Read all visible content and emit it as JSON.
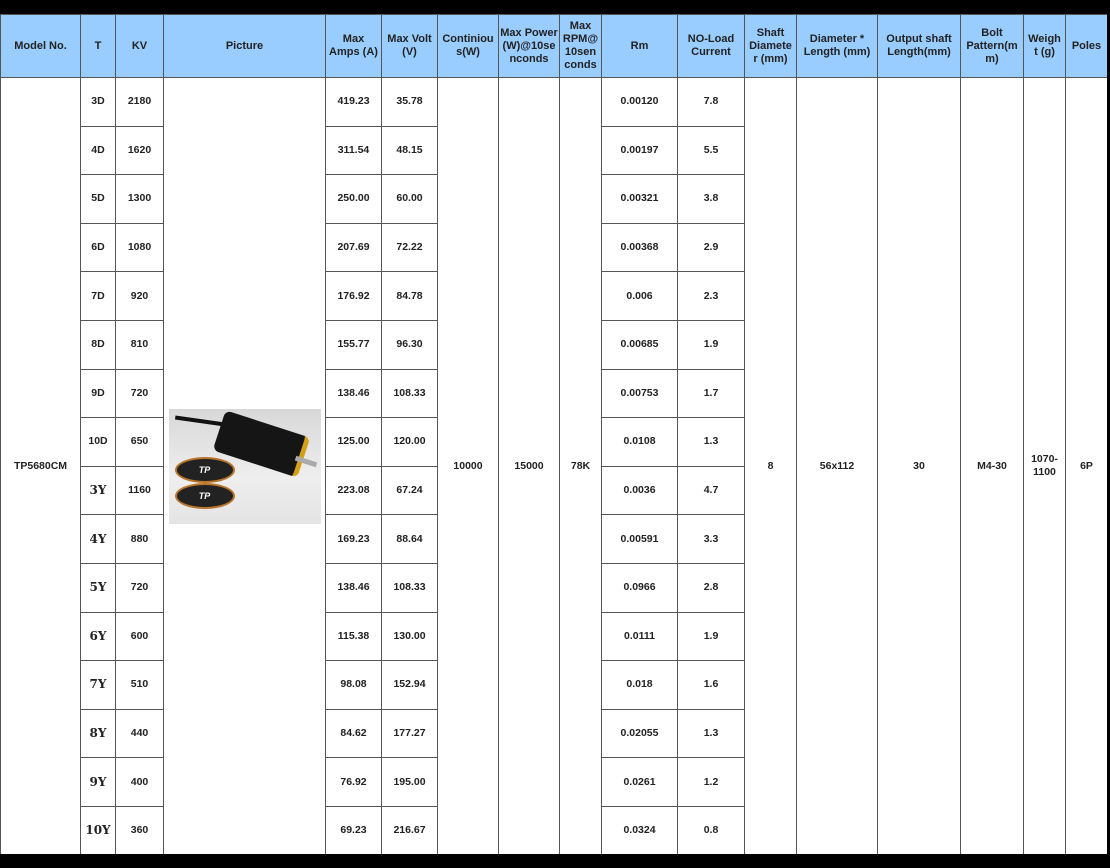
{
  "headers": [
    "Model No.",
    "T",
    "KV",
    "Picture",
    "Max Amps (A)",
    "Max Volt (V)",
    "Continious(W)",
    "Max Power (W)@10seconds",
    "Max RPM@ 10seconds",
    "Rm",
    "NO-Load Current",
    "Shaft Diameter (mm)",
    "Diameter * Length (mm)",
    "Output shaft Length(mm)",
    "Bolt Pattern(mm)",
    "Weight (g)",
    "Poles"
  ],
  "header_display": [
    "Model No.",
    "T",
    "KV",
    "Picture",
    "Max Amps (A)",
    "Max Volt (V)",
    "Continiou s(W)",
    "Max Power (W)@10se nconds",
    "Max RPM@ 10sen conds",
    "Rm",
    "NO-Load Current",
    "Shaft Diamete r (mm)",
    "Diameter * Length (mm)",
    "Output shaft Length(mm)",
    "Bolt Pattern(m m)",
    "Weigh t (g)",
    "Poles"
  ],
  "shared": {
    "model": "TP5680CM",
    "continuous": "10000",
    "max_power": "15000",
    "max_rpm": "78K",
    "shaft_diameter": "8",
    "diameter_length": "56x112",
    "output_shaft_length": "30",
    "bolt_pattern": "M4-30",
    "weight": "1070-1100",
    "poles": "6P",
    "picture_logo_text": "TP"
  },
  "rows": [
    {
      "t": "3D",
      "kv": "2180",
      "amps": "419.23",
      "volt": "35.78",
      "rm": "0.00120",
      "noload": "7.8"
    },
    {
      "t": "4D",
      "kv": "1620",
      "amps": "311.54",
      "volt": "48.15",
      "rm": "0.00197",
      "noload": "5.5"
    },
    {
      "t": "5D",
      "kv": "1300",
      "amps": "250.00",
      "volt": "60.00",
      "rm": "0.00321",
      "noload": "3.8"
    },
    {
      "t": "6D",
      "kv": "1080",
      "amps": "207.69",
      "volt": "72.22",
      "rm": "0.00368",
      "noload": "2.9"
    },
    {
      "t": "7D",
      "kv": "920",
      "amps": "176.92",
      "volt": "84.78",
      "rm": "0.006",
      "noload": "2.3"
    },
    {
      "t": "8D",
      "kv": "810",
      "amps": "155.77",
      "volt": "96.30",
      "rm": "0.00685",
      "noload": "1.9"
    },
    {
      "t": "9D",
      "kv": "720",
      "amps": "138.46",
      "volt": "108.33",
      "rm": "0.00753",
      "noload": "1.7"
    },
    {
      "t": "10D",
      "kv": "650",
      "amps": "125.00",
      "volt": "120.00",
      "rm": "0.0108",
      "noload": "1.3"
    },
    {
      "t": "3Y",
      "kv": "1160",
      "amps": "223.08",
      "volt": "67.24",
      "rm": "0.0036",
      "noload": "4.7"
    },
    {
      "t": "4Y",
      "kv": "880",
      "amps": "169.23",
      "volt": "88.64",
      "rm": "0.00591",
      "noload": "3.3"
    },
    {
      "t": "5Y",
      "kv": "720",
      "amps": "138.46",
      "volt": "108.33",
      "rm": "0.0966",
      "noload": "2.8"
    },
    {
      "t": "6Y",
      "kv": "600",
      "amps": "115.38",
      "volt": "130.00",
      "rm": "0.0111",
      "noload": "1.9"
    },
    {
      "t": "7Y",
      "kv": "510",
      "amps": "98.08",
      "volt": "152.94",
      "rm": "0.018",
      "noload": "1.6"
    },
    {
      "t": "8Y",
      "kv": "440",
      "amps": "84.62",
      "volt": "177.27",
      "rm": "0.02055",
      "noload": "1.3"
    },
    {
      "t": "9Y",
      "kv": "400",
      "amps": "76.92",
      "volt": "195.00",
      "rm": "0.0261",
      "noload": "1.2"
    },
    {
      "t": "10Y",
      "kv": "360",
      "amps": "69.23",
      "volt": "216.67",
      "rm": "0.0324",
      "noload": "0.8"
    }
  ]
}
